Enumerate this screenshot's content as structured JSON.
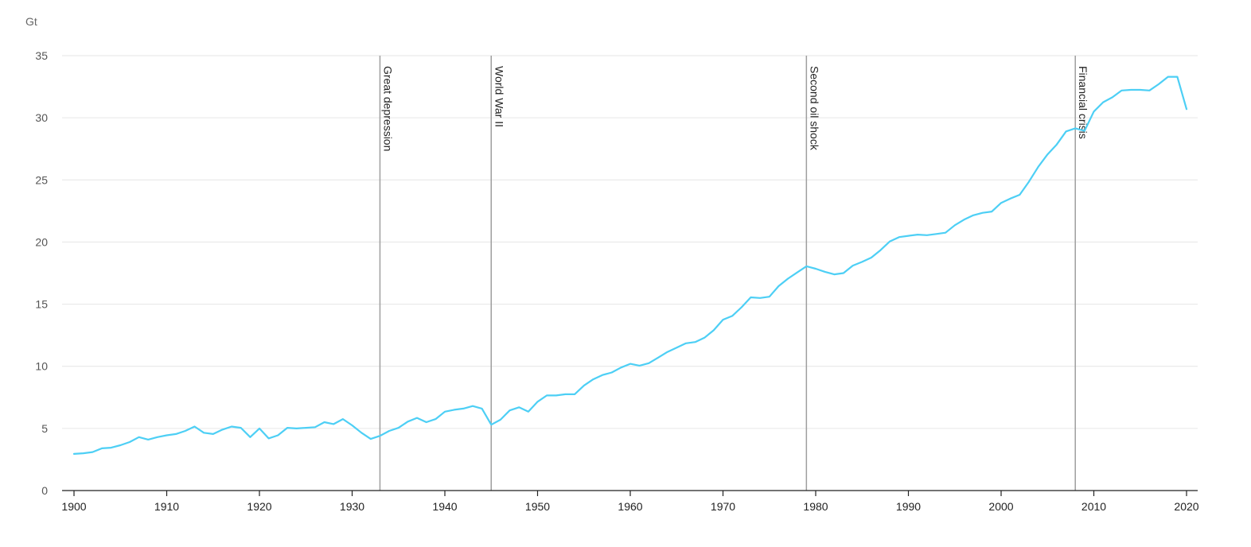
{
  "chart_data": {
    "type": "line",
    "ylabel": "Gt",
    "xlim": [
      1900,
      2020
    ],
    "ylim": [
      0,
      35
    ],
    "grid": true,
    "x_ticks": [
      "1900",
      "1910",
      "1920",
      "1930",
      "1940",
      "1950",
      "1960",
      "1970",
      "1980",
      "1990",
      "2000",
      "2010",
      "2020"
    ],
    "y_ticks": [
      "0",
      "5",
      "10",
      "15",
      "20",
      "25",
      "30",
      "35"
    ],
    "line_color": "#4dcff5",
    "event_line_color": "#9e9e9e",
    "events": [
      {
        "x": 1933,
        "label": "Great depression"
      },
      {
        "x": 1945,
        "label": "World War II"
      },
      {
        "x": 1979,
        "label": "Second oil shock"
      },
      {
        "x": 2008,
        "label": "Financial crisis"
      }
    ],
    "series": [
      {
        "x": [
          1900,
          1901,
          1902,
          1903,
          1904,
          1905,
          1906,
          1907,
          1908,
          1909,
          1910,
          1911,
          1912,
          1913,
          1914,
          1915,
          1916,
          1917,
          1918,
          1919,
          1920,
          1921,
          1922,
          1923,
          1924,
          1925,
          1926,
          1927,
          1928,
          1929,
          1930,
          1931,
          1932,
          1933,
          1934,
          1935,
          1936,
          1937,
          1938,
          1939,
          1940,
          1941,
          1942,
          1943,
          1944,
          1945,
          1946,
          1947,
          1948,
          1949,
          1950,
          1951,
          1952,
          1953,
          1954,
          1955,
          1956,
          1957,
          1958,
          1959,
          1960,
          1961,
          1962,
          1963,
          1964,
          1965,
          1966,
          1967,
          1968,
          1969,
          1970,
          1971,
          1972,
          1973,
          1974,
          1975,
          1976,
          1977,
          1978,
          1979,
          1980,
          1981,
          1982,
          1983,
          1984,
          1985,
          1986,
          1987,
          1988,
          1989,
          1990,
          1991,
          1992,
          1993,
          1994,
          1995,
          1996,
          1997,
          1998,
          1999,
          2000,
          2001,
          2002,
          2003,
          2004,
          2005,
          2006,
          2007,
          2008,
          2009,
          2010,
          2011,
          2012,
          2013,
          2014,
          2015,
          2016,
          2017,
          2018,
          2019,
          2020
        ],
        "values": [
          2.95,
          3.0,
          3.1,
          3.4,
          3.45,
          3.65,
          3.9,
          4.3,
          4.1,
          4.3,
          4.45,
          4.55,
          4.8,
          5.15,
          4.65,
          4.55,
          4.9,
          5.15,
          5.05,
          4.3,
          5.0,
          4.2,
          4.45,
          5.05,
          5.0,
          5.05,
          5.1,
          5.5,
          5.35,
          5.75,
          5.25,
          4.65,
          4.15,
          4.4,
          4.8,
          5.05,
          5.55,
          5.85,
          5.5,
          5.75,
          6.35,
          6.5,
          6.6,
          6.8,
          6.6,
          5.3,
          5.7,
          6.45,
          6.7,
          6.35,
          7.15,
          7.65,
          7.65,
          7.75,
          7.75,
          8.45,
          8.95,
          9.3,
          9.5,
          9.9,
          10.2,
          10.05,
          10.25,
          10.7,
          11.15,
          11.5,
          11.85,
          11.95,
          12.3,
          12.9,
          13.75,
          14.05,
          14.75,
          15.55,
          15.5,
          15.6,
          16.45,
          17.05,
          17.55,
          18.05,
          17.85,
          17.6,
          17.4,
          17.5,
          18.1,
          18.4,
          18.75,
          19.35,
          20.05,
          20.4,
          20.5,
          20.6,
          20.55,
          20.65,
          20.75,
          21.35,
          21.8,
          22.15,
          22.35,
          22.45,
          23.15,
          23.5,
          23.8,
          24.85,
          26.05,
          27.05,
          27.85,
          28.9,
          29.15,
          28.95,
          30.5,
          31.25,
          31.65,
          32.2,
          32.25,
          32.25,
          32.2,
          32.7,
          33.3,
          33.3,
          30.7
        ]
      }
    ]
  }
}
